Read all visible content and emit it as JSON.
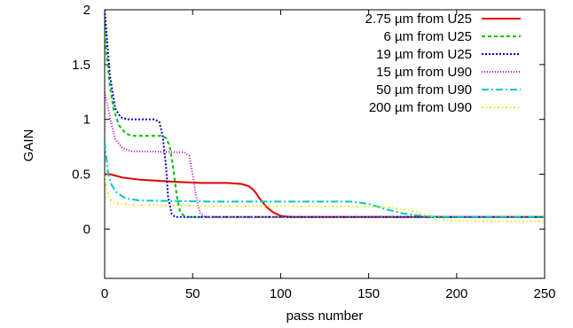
{
  "chart_data": {
    "type": "line",
    "title": "",
    "xlabel": "pass number",
    "ylabel": "GAIN",
    "xlim": [
      0,
      250
    ],
    "ylim": [
      -0.45,
      2
    ],
    "xticks": [
      "0",
      "50",
      "100",
      "150",
      "200",
      "250"
    ],
    "yticks": [
      "0",
      "0.5",
      "1",
      "1.5",
      "2"
    ],
    "xtick_values": [
      0,
      50,
      100,
      150,
      200,
      250
    ],
    "ytick_values": [
      0,
      0.5,
      1,
      1.5,
      2
    ],
    "grid": false,
    "legend_position": "top-right",
    "series": [
      {
        "name": "2.75 µm from U25",
        "color": "#e00000",
        "dash": "solid",
        "points": [
          [
            0,
            0.5
          ],
          [
            3,
            0.5
          ],
          [
            10,
            0.47
          ],
          [
            20,
            0.45
          ],
          [
            30,
            0.44
          ],
          [
            40,
            0.43
          ],
          [
            55,
            0.42
          ],
          [
            70,
            0.42
          ],
          [
            78,
            0.41
          ],
          [
            82,
            0.39
          ],
          [
            85,
            0.35
          ],
          [
            88,
            0.28
          ],
          [
            92,
            0.2
          ],
          [
            96,
            0.15
          ],
          [
            100,
            0.12
          ],
          [
            106,
            0.11
          ],
          [
            120,
            0.11
          ],
          [
            250,
            0.11
          ]
        ]
      },
      {
        "name": "6 µm from U25",
        "color": "#00c000",
        "dash": "4,3",
        "points": [
          [
            0,
            1.9
          ],
          [
            1,
            1.6
          ],
          [
            3,
            1.3
          ],
          [
            5,
            1.1
          ],
          [
            8,
            0.95
          ],
          [
            12,
            0.87
          ],
          [
            16,
            0.85
          ],
          [
            32,
            0.85
          ],
          [
            35,
            0.83
          ],
          [
            37,
            0.75
          ],
          [
            39,
            0.55
          ],
          [
            41,
            0.3
          ],
          [
            43,
            0.15
          ],
          [
            46,
            0.11
          ],
          [
            60,
            0.11
          ],
          [
            250,
            0.11
          ]
        ]
      },
      {
        "name": "19 µm from U25",
        "color": "#0000c8",
        "dash": "2,2",
        "points": [
          [
            0,
            2
          ],
          [
            1,
            1.8
          ],
          [
            3,
            1.4
          ],
          [
            6,
            1.1
          ],
          [
            9,
            1.02
          ],
          [
            13,
            1.0
          ],
          [
            28,
            1.0
          ],
          [
            31,
            0.98
          ],
          [
            33,
            0.85
          ],
          [
            35,
            0.55
          ],
          [
            36,
            0.3
          ],
          [
            38,
            0.14
          ],
          [
            40,
            0.11
          ],
          [
            50,
            0.11
          ],
          [
            250,
            0.11
          ]
        ]
      },
      {
        "name": "15 µm from U90",
        "color": "#c000c0",
        "dash": "1,2",
        "points": [
          [
            0,
            1.25
          ],
          [
            2,
            1.1
          ],
          [
            4,
            0.95
          ],
          [
            6,
            0.82
          ],
          [
            10,
            0.74
          ],
          [
            15,
            0.71
          ],
          [
            45,
            0.7
          ],
          [
            48,
            0.67
          ],
          [
            50,
            0.5
          ],
          [
            52,
            0.3
          ],
          [
            54,
            0.15
          ],
          [
            57,
            0.11
          ],
          [
            65,
            0.11
          ],
          [
            250,
            0.11
          ]
        ]
      },
      {
        "name": "50 µm from U90",
        "color": "#00c8c8",
        "dash": "8,3,2,3",
        "points": [
          [
            0,
            0.8
          ],
          [
            2,
            0.5
          ],
          [
            4,
            0.4
          ],
          [
            7,
            0.33
          ],
          [
            12,
            0.28
          ],
          [
            20,
            0.26
          ],
          [
            60,
            0.25
          ],
          [
            100,
            0.25
          ],
          [
            140,
            0.25
          ],
          [
            150,
            0.23
          ],
          [
            160,
            0.18
          ],
          [
            170,
            0.14
          ],
          [
            180,
            0.12
          ],
          [
            190,
            0.11
          ],
          [
            250,
            0.11
          ]
        ]
      },
      {
        "name": "200 µm from U90",
        "color": "#e6e600",
        "dash": "2,3,1,3",
        "points": [
          [
            0,
            0.48
          ],
          [
            2,
            0.3
          ],
          [
            4,
            0.25
          ],
          [
            8,
            0.23
          ],
          [
            15,
            0.22
          ],
          [
            60,
            0.21
          ],
          [
            120,
            0.21
          ],
          [
            160,
            0.2
          ],
          [
            170,
            0.18
          ],
          [
            180,
            0.14
          ],
          [
            188,
            0.1
          ],
          [
            195,
            0.08
          ],
          [
            210,
            0.07
          ],
          [
            250,
            0.07
          ]
        ]
      }
    ]
  }
}
